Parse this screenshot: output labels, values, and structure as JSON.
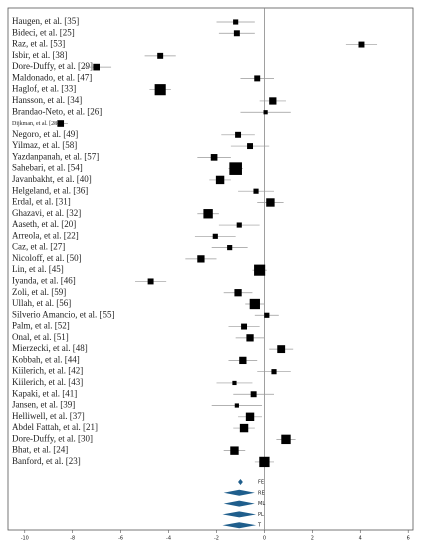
{
  "chart_data": {
    "type": "forest",
    "xlim": [
      -10.7,
      6.2
    ],
    "xticks": [
      -10,
      -8,
      -6,
      -4,
      -2,
      0,
      2,
      4,
      6
    ],
    "color": "#000000",
    "summary_color": "#1f5e8c",
    "studies": [
      {
        "name": "Haugen, et al. [35]",
        "value": -1.2,
        "lower": -2.0,
        "upper": -0.4,
        "weight": 1.5
      },
      {
        "name": "Bideci, et al. [25]",
        "value": -1.15,
        "lower": -1.9,
        "upper": -0.4,
        "weight": 2
      },
      {
        "name": "Raz, et al. [53]",
        "value": 4.05,
        "lower": 3.4,
        "upper": 4.7,
        "weight": 2
      },
      {
        "name": "Isbir, et al. [38]",
        "value": -4.35,
        "lower": -5.0,
        "upper": -3.7,
        "weight": 2
      },
      {
        "name": "Dore-Duffy, et al. [29]",
        "value": -7.0,
        "lower": -7.6,
        "upper": -6.4,
        "weight": 2.5
      },
      {
        "name": "Maldonado, et al. [47]",
        "value": -0.3,
        "lower": -1.0,
        "upper": 0.4,
        "weight": 2
      },
      {
        "name": "Haglof, et al. [33]",
        "value": -4.35,
        "lower": -4.8,
        "upper": -3.9,
        "weight": 7
      },
      {
        "name": "Hansson, et al. [34]",
        "value": 0.35,
        "lower": -0.2,
        "upper": 0.9,
        "weight": 3
      },
      {
        "name": "Brandao-Neto, et al. [26]",
        "value": 0.05,
        "lower": -1.0,
        "upper": 1.1,
        "weight": 1
      },
      {
        "name": "Dijkman, et al. [28]",
        "value": -8.5,
        "lower": -8.8,
        "upper": -8.2,
        "weight": 2.5
      },
      {
        "name": "Negoro, et al. [49]",
        "value": -1.1,
        "lower": -1.8,
        "upper": -0.4,
        "weight": 2
      },
      {
        "name": "Yilmaz, et al. [58]",
        "value": -0.6,
        "lower": -1.4,
        "upper": 0.2,
        "weight": 2
      },
      {
        "name": "Yazdanpanah, et al. [57]",
        "value": -2.1,
        "lower": -2.8,
        "upper": -1.4,
        "weight": 2.5
      },
      {
        "name": "Sahebari, et al. [54]",
        "value": -1.2,
        "lower": -1.5,
        "upper": -0.9,
        "weight": 9
      },
      {
        "name": "Javanbakht, et al. [40]",
        "value": -1.85,
        "lower": -2.3,
        "upper": -1.4,
        "weight": 4
      },
      {
        "name": "Helgeland, et al. [36]",
        "value": -0.35,
        "lower": -1.1,
        "upper": 0.4,
        "weight": 1.5
      },
      {
        "name": "Erdal, et al. [31]",
        "value": 0.25,
        "lower": -0.3,
        "upper": 0.8,
        "weight": 4
      },
      {
        "name": "Ghazavi, et al. [32]",
        "value": -2.35,
        "lower": -2.8,
        "upper": -1.9,
        "weight": 5
      },
      {
        "name": "Aaseth, et al. [20]",
        "value": -1.05,
        "lower": -1.9,
        "upper": -0.2,
        "weight": 1.5
      },
      {
        "name": "Arreola, et al. [22]",
        "value": -2.05,
        "lower": -2.9,
        "upper": -1.2,
        "weight": 1.5
      },
      {
        "name": "Caz, et al. [27]",
        "value": -1.45,
        "lower": -2.2,
        "upper": -0.7,
        "weight": 1.5
      },
      {
        "name": "Nicoloff, et al. [50]",
        "value": -2.65,
        "lower": -3.3,
        "upper": -2.0,
        "weight": 3
      },
      {
        "name": "Lin, et al. [45]",
        "value": -0.2,
        "lower": -0.5,
        "upper": 0.1,
        "weight": 7
      },
      {
        "name": "Iyanda, et al. [46]",
        "value": -4.75,
        "lower": -5.4,
        "upper": -4.1,
        "weight": 2
      },
      {
        "name": "Zoli, et al. [59]",
        "value": -1.1,
        "lower": -1.7,
        "upper": -0.5,
        "weight": 3
      },
      {
        "name": "Ullah, et al. [56]",
        "value": -0.4,
        "lower": -0.8,
        "upper": 0.0,
        "weight": 6
      },
      {
        "name": "Silverio Amancio, et al. [55]",
        "value": 0.1,
        "lower": -0.4,
        "upper": 0.6,
        "weight": 1.5
      },
      {
        "name": "Palm, et al. [52]",
        "value": -0.85,
        "lower": -1.5,
        "upper": -0.2,
        "weight": 2
      },
      {
        "name": "Onal, et al. [51]",
        "value": -0.6,
        "lower": -1.2,
        "upper": 0.0,
        "weight": 3
      },
      {
        "name": "Mierzecki, et al. [48]",
        "value": 0.7,
        "lower": 0.2,
        "upper": 1.2,
        "weight": 3.5
      },
      {
        "name": "Kobbah, et al. [44]",
        "value": -0.9,
        "lower": -1.5,
        "upper": -0.3,
        "weight": 3
      },
      {
        "name": "Kiilerich, et al. [42]",
        "value": 0.4,
        "lower": -0.3,
        "upper": 1.1,
        "weight": 1.5
      },
      {
        "name": "Kiilerich, et al. [43]",
        "value": -1.25,
        "lower": -2.0,
        "upper": -0.5,
        "weight": 1
      },
      {
        "name": "Kapaki, et al. [41]",
        "value": -0.45,
        "lower": -1.3,
        "upper": 0.4,
        "weight": 2
      },
      {
        "name": "Jansen, et al. [39]",
        "value": -1.15,
        "lower": -2.2,
        "upper": -0.1,
        "weight": 1
      },
      {
        "name": "Helliwell, et al. [37]",
        "value": -0.6,
        "lower": -1.1,
        "upper": -0.1,
        "weight": 4
      },
      {
        "name": "Abdel Fattah, et al. [21]",
        "value": -0.85,
        "lower": -1.3,
        "upper": -0.4,
        "weight": 4
      },
      {
        "name": "Dore-Duffy, et al. [30]",
        "value": 0.9,
        "lower": 0.5,
        "upper": 1.3,
        "weight": 5
      },
      {
        "name": "Bhat, et al. [24]",
        "value": -1.25,
        "lower": -1.7,
        "upper": -0.8,
        "weight": 4
      },
      {
        "name": "Banford, et al. [23]",
        "value": 0.0,
        "lower": -0.4,
        "upper": 0.4,
        "weight": 6
      }
    ],
    "summary": [
      {
        "name": "FE",
        "value": -1.0,
        "lower": -1.1,
        "upper": -0.9
      },
      {
        "name": "RE",
        "value": -1.05,
        "lower": -1.7,
        "upper": -0.4
      },
      {
        "name": "ML",
        "value": -1.05,
        "lower": -1.7,
        "upper": -0.4
      },
      {
        "name": "PL",
        "value": -1.05,
        "lower": -1.75,
        "upper": -0.35
      },
      {
        "name": "T",
        "value": -1.05,
        "lower": -1.75,
        "upper": -0.35
      }
    ]
  }
}
